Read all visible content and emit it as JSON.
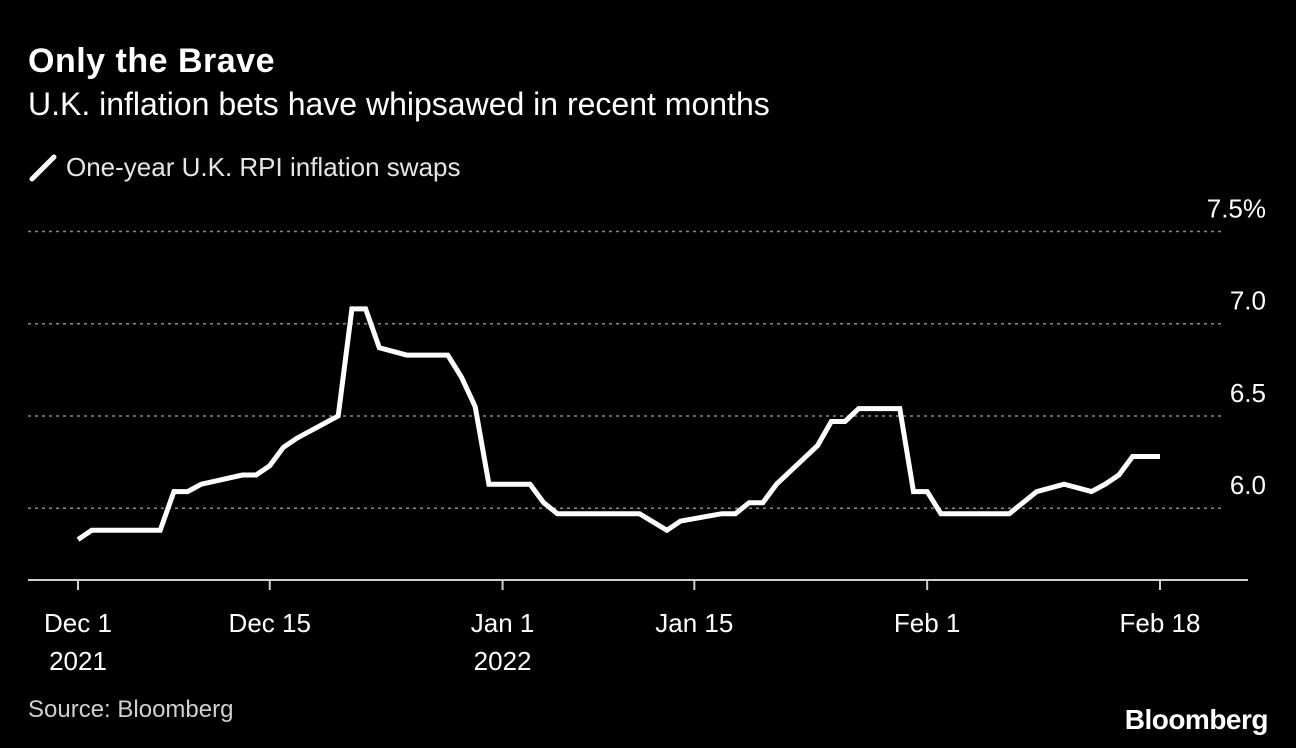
{
  "header": {
    "title": "Only the Brave",
    "subtitle": "U.K. inflation bets have whipsawed in recent months"
  },
  "legend": {
    "label": "One-year U.K. RPI inflation swaps",
    "icon": "line-swatch-icon"
  },
  "footer": {
    "source": "Source: Bloomberg",
    "logo": "Bloomberg"
  },
  "colors": {
    "background": "#000000",
    "line": "#ffffff",
    "grid": "#8a8a8a",
    "axis": "#cfcfcf",
    "text": "#ffffff"
  },
  "chart_data": {
    "type": "line",
    "title": "Only the Brave",
    "subtitle": "U.K. inflation bets have whipsawed in recent months",
    "xlabel": "",
    "ylabel": "",
    "ylim": [
      5.6,
      7.6
    ],
    "xlim": [
      0,
      80
    ],
    "grid": true,
    "legend_position": "top-left",
    "y_ticks": [
      {
        "value": 7.5,
        "label": "7.5%"
      },
      {
        "value": 7.0,
        "label": "7.0"
      },
      {
        "value": 6.5,
        "label": "6.5"
      },
      {
        "value": 6.0,
        "label": "6.0"
      }
    ],
    "x_ticks": [
      {
        "x": 0,
        "label": [
          "Dec 1",
          "2021"
        ]
      },
      {
        "x": 14,
        "label": [
          "Dec 15"
        ]
      },
      {
        "x": 31,
        "label": [
          "Jan 1",
          "2022"
        ]
      },
      {
        "x": 45,
        "label": [
          "Jan 15"
        ]
      },
      {
        "x": 62,
        "label": [
          "Feb 1"
        ]
      },
      {
        "x": 79,
        "label": [
          "Feb 18"
        ]
      }
    ],
    "series": [
      {
        "name": "One-year U.K. RPI inflation swaps",
        "x": [
          0,
          1,
          6,
          7,
          8,
          9,
          12,
          13,
          14,
          15,
          16,
          19,
          20,
          21,
          22,
          24,
          27,
          28,
          29,
          30,
          31,
          33,
          34,
          35,
          41,
          43,
          44,
          47,
          48,
          49,
          50,
          51,
          53,
          54,
          55,
          56,
          57,
          58,
          59,
          60,
          61,
          62,
          63,
          65,
          68,
          70,
          71,
          72,
          74,
          75,
          76,
          77,
          78,
          79
        ],
        "values": [
          5.83,
          5.88,
          5.88,
          6.09,
          6.09,
          6.13,
          6.18,
          6.18,
          6.23,
          6.33,
          6.38,
          6.5,
          7.08,
          7.08,
          6.87,
          6.83,
          6.83,
          6.71,
          6.55,
          6.13,
          6.13,
          6.13,
          6.03,
          5.97,
          5.97,
          5.88,
          5.93,
          5.97,
          5.97,
          6.03,
          6.03,
          6.13,
          6.27,
          6.34,
          6.47,
          6.47,
          6.54,
          6.54,
          6.54,
          6.54,
          6.09,
          6.09,
          5.97,
          5.97,
          5.97,
          6.09,
          6.11,
          6.13,
          6.09,
          6.13,
          6.18,
          6.28,
          6.28,
          6.28
        ]
      }
    ]
  }
}
